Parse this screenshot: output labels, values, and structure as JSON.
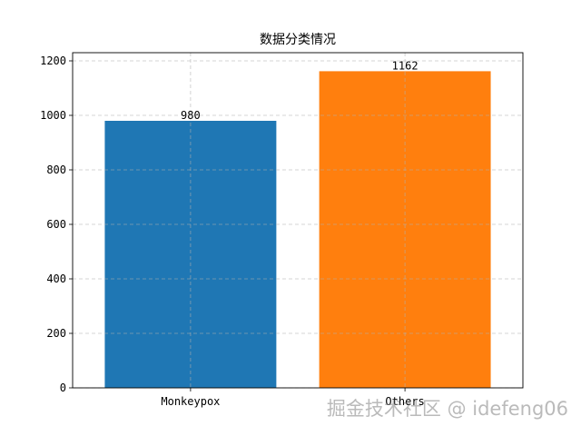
{
  "chart_data": {
    "type": "bar",
    "title": "数据分类情况",
    "xlabel": "",
    "ylabel": "",
    "categories": [
      "Monkeypox",
      "Others"
    ],
    "values": [
      980,
      1162
    ],
    "data_labels": [
      "980",
      "1162"
    ],
    "colors": [
      "#1f77b4",
      "#ff7f0e"
    ],
    "ylim": [
      0,
      1230
    ],
    "yticks": [
      0,
      200,
      400,
      600,
      800,
      1000,
      1200
    ],
    "grid": true,
    "grid_style": "dashed",
    "legend": false
  },
  "watermark": "掘金技术社区 @ idefeng06"
}
